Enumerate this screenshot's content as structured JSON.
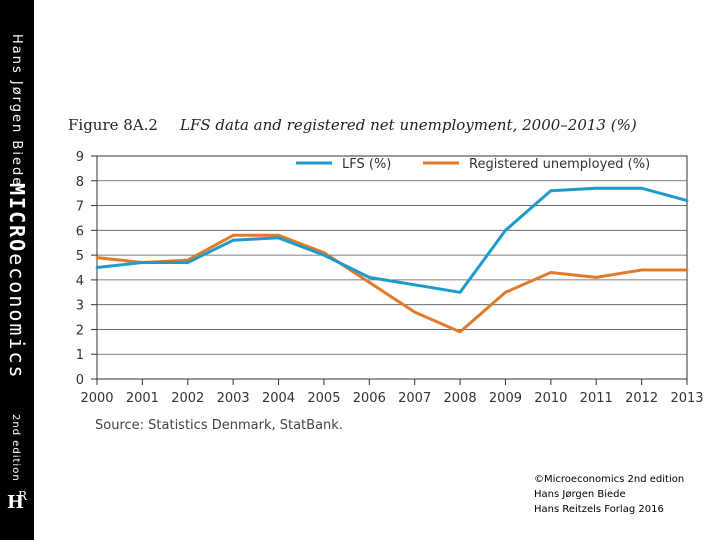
{
  "sidebar": {
    "author": "Hans Jørgen Biede",
    "book_title_bold": "MICRO",
    "book_title_rest": "economics",
    "edition": "2nd edition",
    "publisher_logo": "HR"
  },
  "figure": {
    "number": "Figure 8A.2",
    "title": "LFS data and registered net unemployment, 2000–2013 (%)",
    "source": "Source: Statistics Denmark, StatBank."
  },
  "copyright": {
    "line1": "©Microeconomics 2nd edition",
    "line2": "Hans Jørgen Biede",
    "line3": "Hans Reitzels Forlag 2016"
  },
  "chart_data": {
    "type": "line",
    "title": "LFS data and registered net unemployment, 2000–2013 (%)",
    "xlabel": "",
    "ylabel": "",
    "x": [
      "2000",
      "2001",
      "2002",
      "2003",
      "2004",
      "2005",
      "2006",
      "2007",
      "2008",
      "2009",
      "2010",
      "2011",
      "2012",
      "2013"
    ],
    "ylim": [
      0,
      9
    ],
    "yticks": [
      0,
      1,
      2,
      3,
      4,
      5,
      6,
      7,
      8,
      9
    ],
    "grid": true,
    "legend_position": "top-right",
    "series": [
      {
        "name": "LFS (%)",
        "color": "#1e9bc8",
        "values": [
          4.5,
          4.7,
          4.7,
          5.6,
          5.7,
          5.0,
          4.1,
          3.8,
          3.5,
          6.0,
          7.6,
          7.7,
          7.7,
          7.2
        ]
      },
      {
        "name": "Registered unemployed (%)",
        "color": "#e07b2a",
        "values": [
          4.9,
          4.7,
          4.8,
          5.8,
          5.8,
          5.1,
          3.9,
          2.7,
          1.9,
          3.5,
          4.3,
          4.1,
          4.4,
          4.4
        ]
      }
    ]
  }
}
